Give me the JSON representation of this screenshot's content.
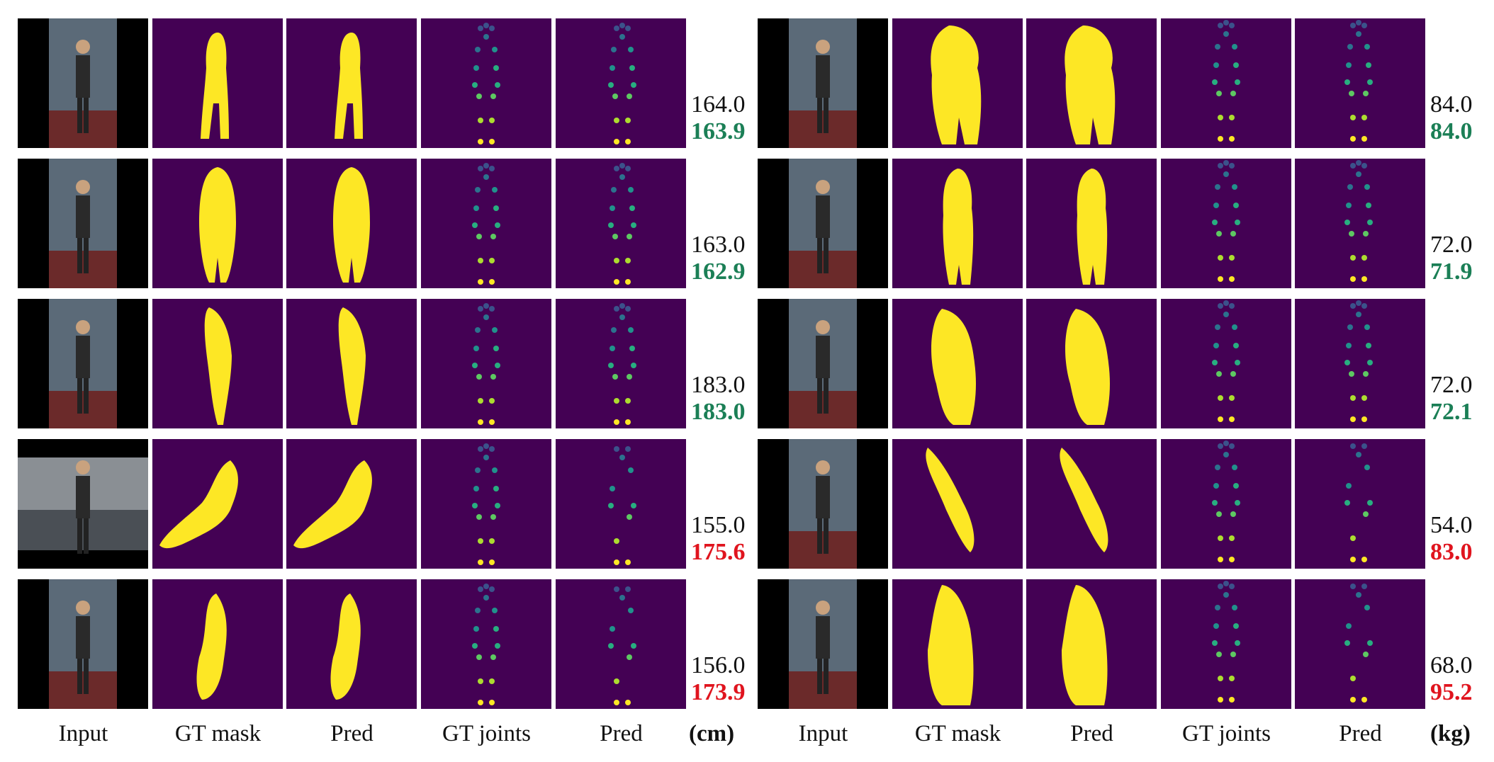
{
  "columns": [
    "Input",
    "GT mask",
    "Pred",
    "GT joints",
    "Pred"
  ],
  "units": {
    "height": "(cm)",
    "weight": "(kg)"
  },
  "colors": {
    "background_mask": "#440154",
    "foreground": "#fde725",
    "correct": "#1b7f56",
    "wrong": "#e0141e"
  },
  "height_rows": [
    {
      "gt": "164.0",
      "pred": "163.9",
      "status": "correct"
    },
    {
      "gt": "163.0",
      "pred": "162.9",
      "status": "correct"
    },
    {
      "gt": "183.0",
      "pred": "183.0",
      "status": "correct"
    },
    {
      "gt": "155.0",
      "pred": "175.6",
      "status": "wrong"
    },
    {
      "gt": "156.0",
      "pred": "173.9",
      "status": "wrong"
    }
  ],
  "weight_rows": [
    {
      "gt": "84.0",
      "pred": "84.0",
      "status": "correct"
    },
    {
      "gt": "72.0",
      "pred": "71.9",
      "status": "correct"
    },
    {
      "gt": "72.0",
      "pred": "72.1",
      "status": "correct"
    },
    {
      "gt": "54.0",
      "pred": "83.0",
      "status": "wrong"
    },
    {
      "gt": "68.0",
      "pred": "95.2",
      "status": "wrong"
    }
  ]
}
